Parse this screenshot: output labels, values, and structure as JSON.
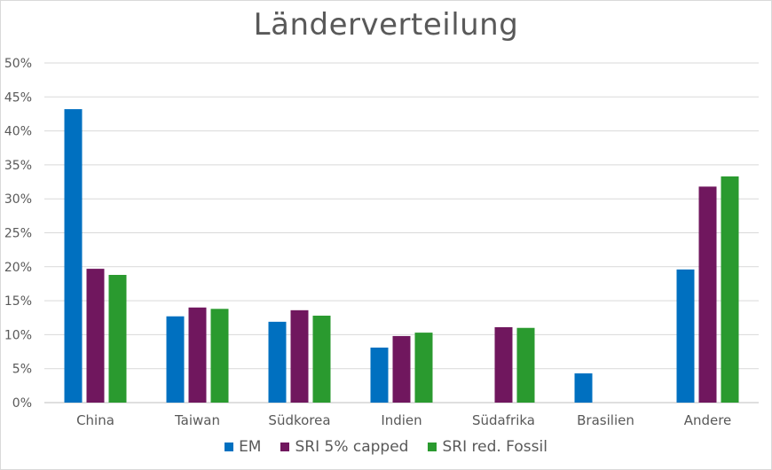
{
  "chart_data": {
    "type": "bar",
    "title": "Länderverteilung",
    "categories": [
      "China",
      "Taiwan",
      "Südkorea",
      "Indien",
      "Südafrika",
      "Brasilien",
      "Andere"
    ],
    "series": [
      {
        "name": "EM",
        "color": "#0070c0",
        "values": [
          43.2,
          12.7,
          11.9,
          8.1,
          null,
          4.3,
          19.6
        ]
      },
      {
        "name": "SRI 5% capped",
        "color": "#70175e",
        "values": [
          19.7,
          14.0,
          13.6,
          9.8,
          11.1,
          null,
          31.8
        ]
      },
      {
        "name": "SRI red. Fossil",
        "color": "#2a9a2f",
        "values": [
          18.8,
          13.8,
          12.8,
          10.3,
          11.0,
          null,
          33.3
        ]
      }
    ],
    "yticks": [
      "0%",
      "5%",
      "10%",
      "15%",
      "20%",
      "25%",
      "30%",
      "35%",
      "40%",
      "45%",
      "50%"
    ],
    "ylim": [
      0,
      50
    ],
    "grid": true,
    "legend_position": "bottom"
  }
}
